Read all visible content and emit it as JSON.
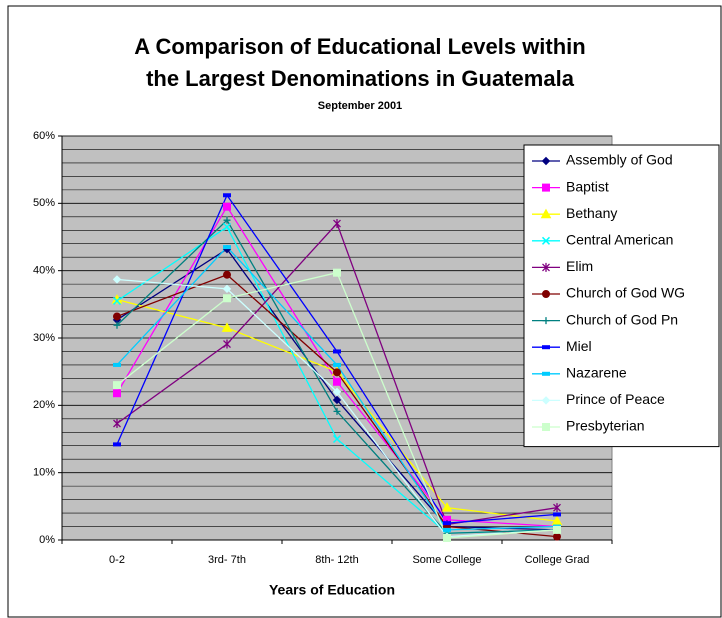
{
  "chart_data": {
    "type": "line",
    "title_lines": [
      "A Comparison of Educational  Levels within",
      "the Largest Denominations in Guatemala"
    ],
    "subtitle": "September 2001",
    "x_label": "Years of Education",
    "categories": [
      "0-2",
      "3rd- 7th",
      "8th- 12th",
      "Some College",
      "College Grad"
    ],
    "ylim": [
      0,
      60
    ],
    "yticks": [
      {
        "value": 0,
        "label": "0%"
      },
      {
        "value": 10,
        "label": "10%"
      },
      {
        "value": 20,
        "label": "20%"
      },
      {
        "value": 30,
        "label": "30%"
      },
      {
        "value": 40,
        "label": "40%"
      },
      {
        "value": 50,
        "label": "50%"
      },
      {
        "value": 60,
        "label": "60%"
      }
    ],
    "minor_grid": [
      2,
      4,
      6,
      8,
      12,
      14,
      16,
      18,
      22,
      24,
      26,
      28,
      32,
      34,
      36,
      38,
      42,
      44,
      46,
      48,
      52,
      54,
      56,
      58
    ],
    "grid": true,
    "legend": "right",
    "series": [
      {
        "name": "Assembly of God",
        "color": "#000080",
        "marker": "diamond",
        "values": [
          32.7,
          43.2,
          20.8,
          2.0,
          1.5
        ]
      },
      {
        "name": "Baptist",
        "color": "#ff00ff",
        "marker": "square",
        "values": [
          21.8,
          49.5,
          23.5,
          3.0,
          2.0
        ]
      },
      {
        "name": "Bethany",
        "color": "#ffff00",
        "marker": "triangle",
        "values": [
          35.7,
          31.5,
          25.0,
          4.8,
          2.8
        ]
      },
      {
        "name": "Central American",
        "color": "#00ffff",
        "marker": "x",
        "values": [
          35.5,
          46.5,
          15.0,
          1.0,
          1.5
        ]
      },
      {
        "name": "Elim",
        "color": "#800080",
        "marker": "star",
        "values": [
          17.3,
          29.1,
          47.0,
          2.3,
          4.8
        ]
      },
      {
        "name": "Church of God WG",
        "color": "#800000",
        "marker": "circle",
        "values": [
          33.2,
          39.4,
          24.9,
          2.0,
          0.5
        ]
      },
      {
        "name": "Church of God Pn",
        "color": "#008080",
        "marker": "plus",
        "values": [
          31.9,
          47.5,
          19.1,
          1.0,
          1.5
        ]
      },
      {
        "name": "Miel",
        "color": "#0000ff",
        "marker": "dash",
        "values": [
          14.2,
          51.2,
          28.0,
          2.5,
          3.8
        ]
      },
      {
        "name": "Nazarene",
        "color": "#00ccff",
        "marker": "dash",
        "values": [
          26.0,
          43.5,
          26.0,
          1.5,
          2.0
        ]
      },
      {
        "name": "Prince of Peace",
        "color": "#ccffff",
        "marker": "diamond",
        "values": [
          38.7,
          37.3,
          22.0,
          0.5,
          1.5
        ]
      },
      {
        "name": "Presbyterian",
        "color": "#ccffcc",
        "marker": "square",
        "values": [
          23.0,
          35.9,
          39.7,
          0.3,
          1.5
        ]
      }
    ]
  }
}
